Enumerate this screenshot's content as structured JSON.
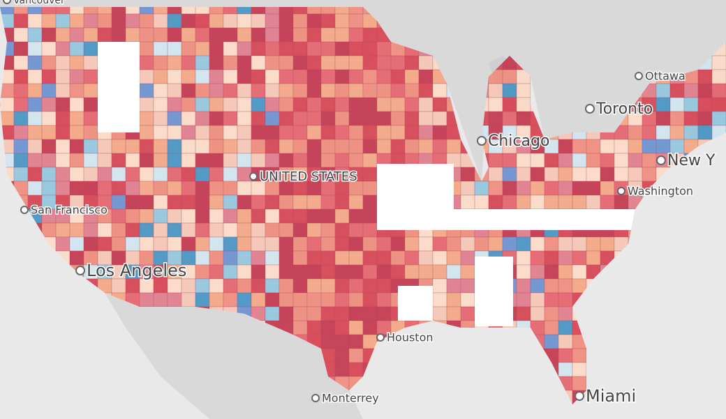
{
  "map": {
    "labels": [
      {
        "text": "Vancouver"
      },
      {
        "text": "Ottawa"
      },
      {
        "text": "Toronto"
      },
      {
        "text": "Chicago"
      },
      {
        "text": "New Y"
      },
      {
        "text": "Washington"
      },
      {
        "text": "San Francisco"
      },
      {
        "text": "Los Angeles"
      },
      {
        "text": "UNITED STATES"
      },
      {
        "text": "Houston"
      },
      {
        "text": "Monterrey"
      },
      {
        "text": "Miami"
      }
    ]
  }
}
